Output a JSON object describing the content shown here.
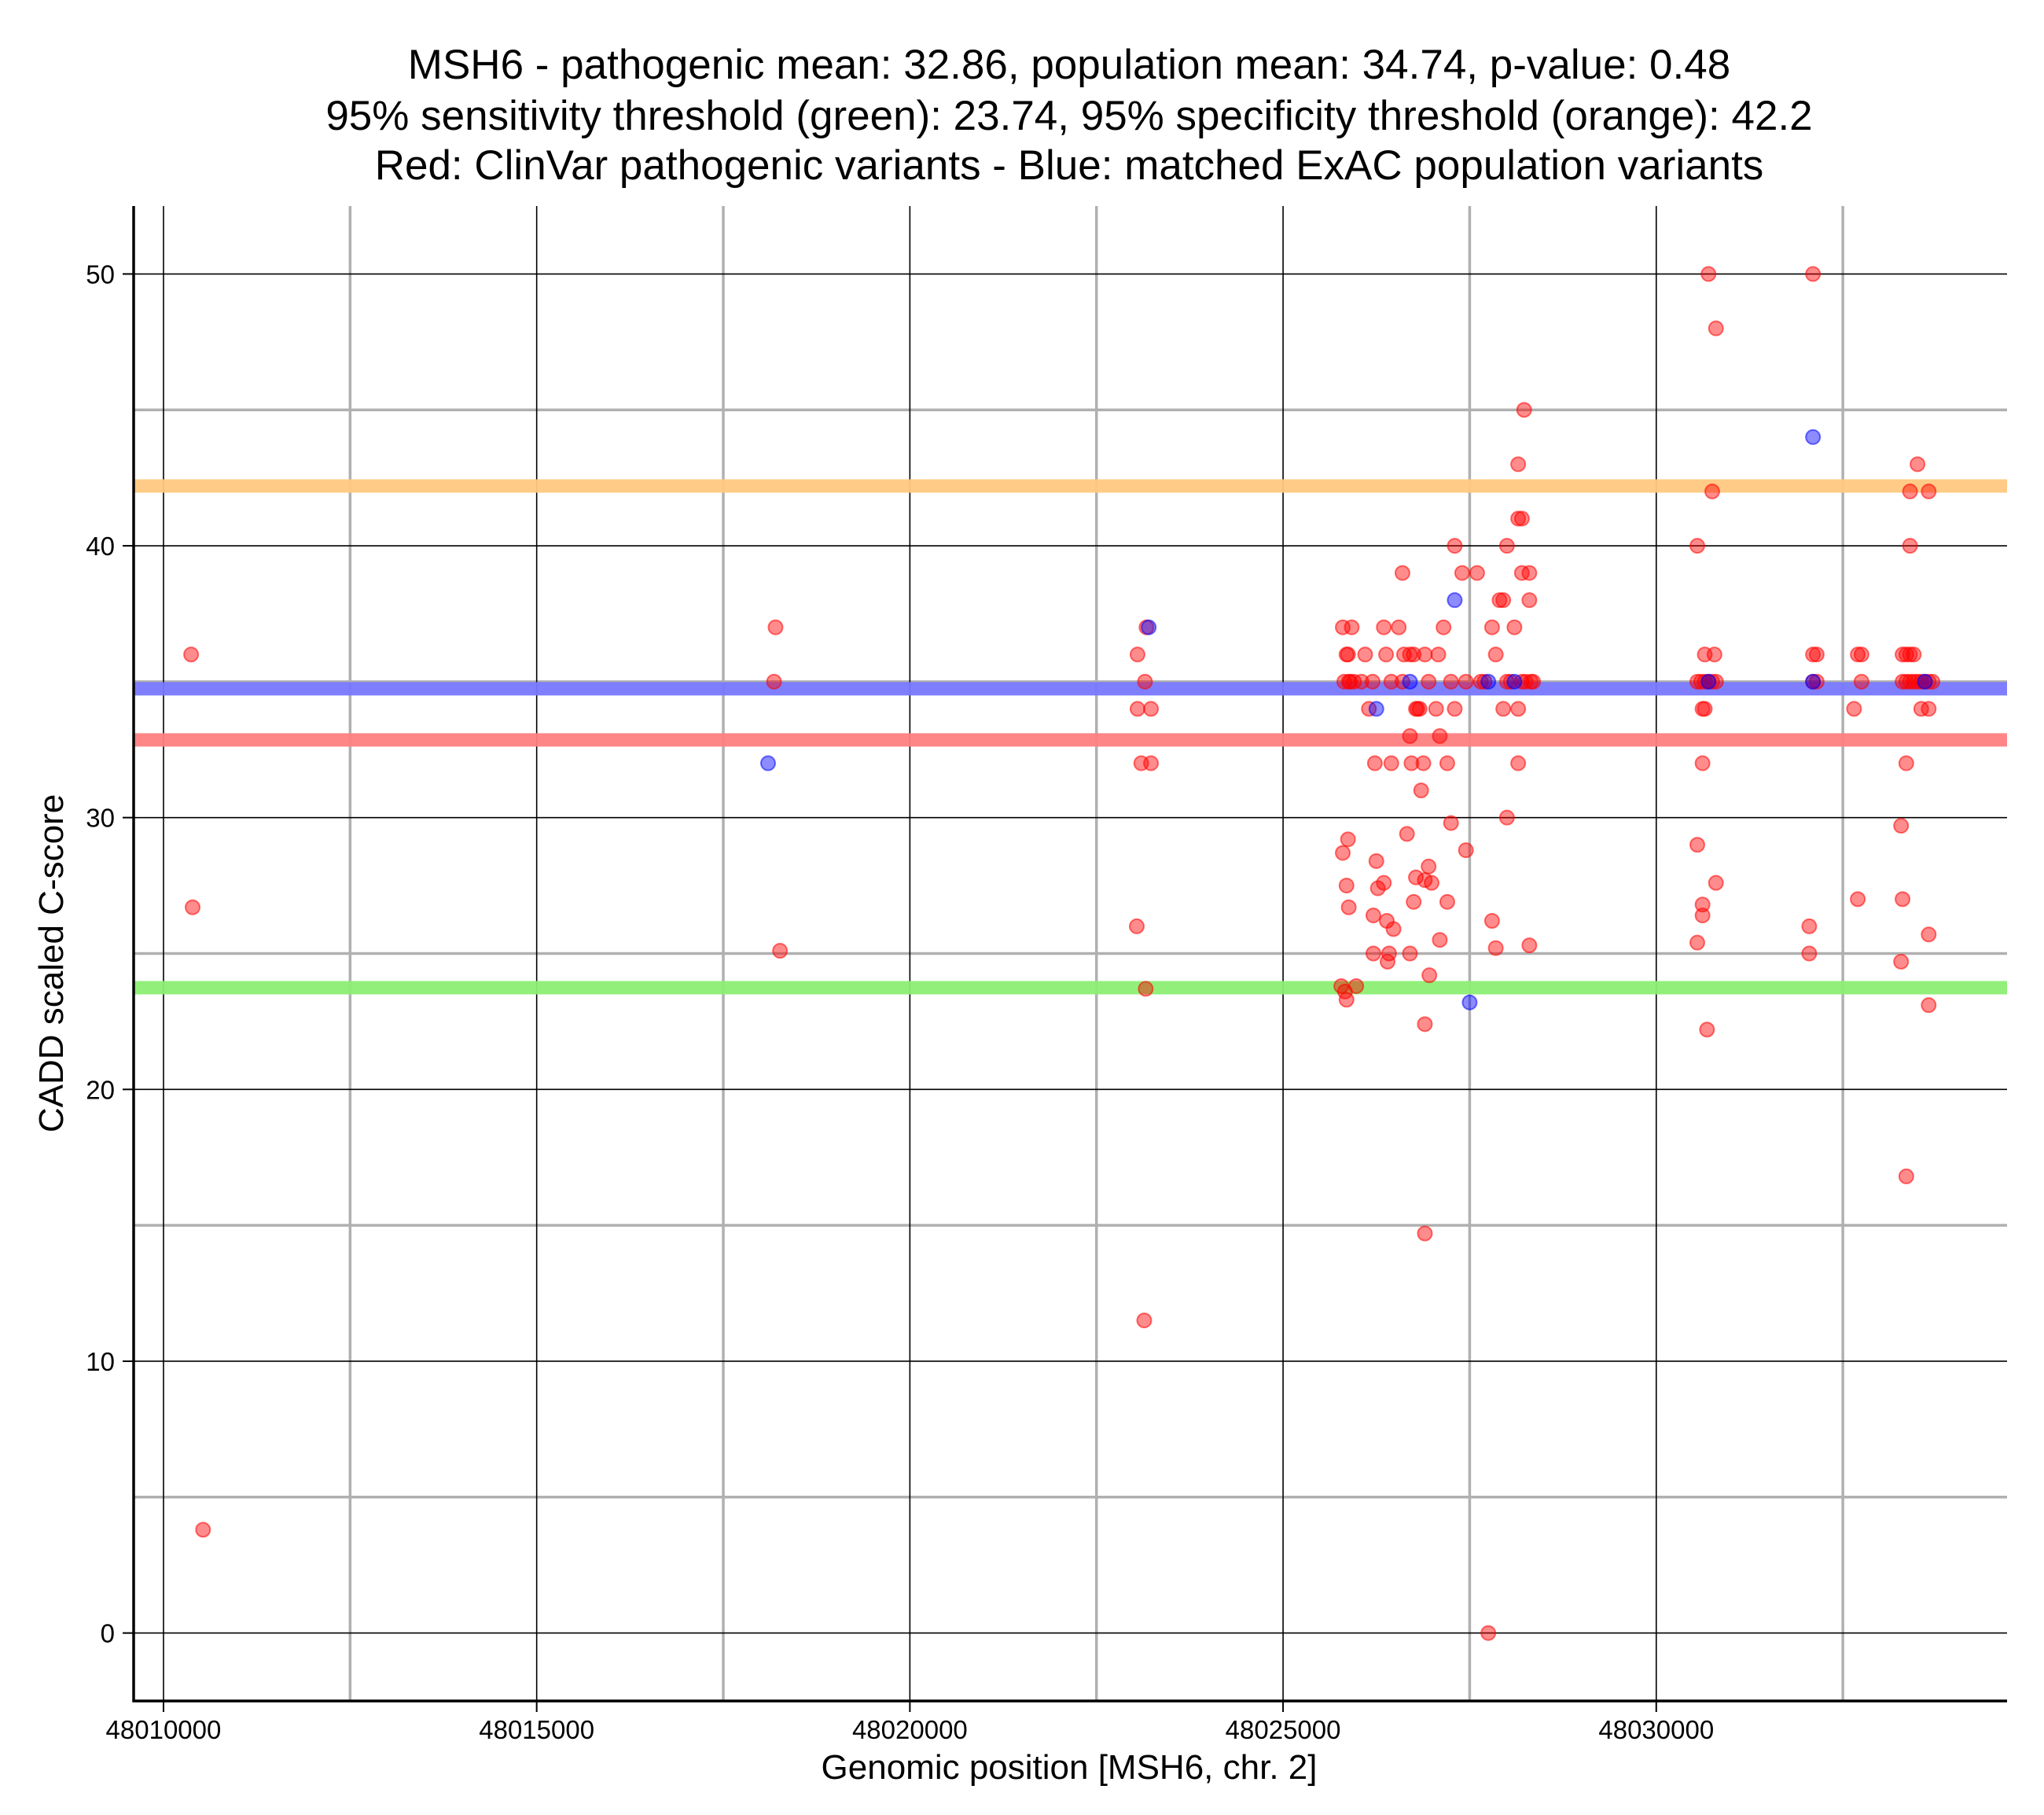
{
  "chart_data": {
    "type": "scatter",
    "title_lines": [
      "MSH6 - pathogenic mean: 32.86, population mean: 34.74, p-value: 0.48",
      "95% sensitivity threshold (green): 23.74, 95% specificity threshold (orange): 42.2",
      "Red: ClinVar pathogenic variants - Blue: matched ExAC population variants"
    ],
    "xlabel": "Genomic position [MSH6, chr. 2]",
    "ylabel": "CADD scaled C-score",
    "xlim": [
      48009600,
      48034700
    ],
    "ylim": [
      -2.5,
      52.5
    ],
    "x_ticks": [
      48010000,
      48015000,
      48020000,
      48025000,
      48030000
    ],
    "x_tick_labels": [
      "48010000",
      "48015000",
      "48020000",
      "48025000",
      "48030000"
    ],
    "y_ticks": [
      0,
      10,
      20,
      30,
      40,
      50
    ],
    "y_tick_labels": [
      "0",
      "10",
      "20",
      "30",
      "40",
      "50"
    ],
    "x_minor_grid": [
      48012500,
      48017500,
      48022500,
      48027500,
      48032500
    ],
    "y_minor_grid": [
      5,
      15,
      25,
      35,
      45
    ],
    "grid": true,
    "colors": {
      "pathogenic": "#ff0000",
      "population": "#0000ff",
      "pathogenic_mean_line": "#ff7f7f",
      "population_mean_line": "#7777ff",
      "sensitivity_line": "#8cee73",
      "specificity_line": "#ffc87f",
      "major_grid": "#000000",
      "minor_grid": "#b0b0b0"
    },
    "hlines": [
      {
        "name": "pathogenic mean",
        "value": 32.86,
        "color": "#ff7f7f"
      },
      {
        "name": "population mean",
        "value": 34.74,
        "color": "#7777ff"
      },
      {
        "name": "95% sensitivity threshold",
        "value": 23.74,
        "color": "#8cee73"
      },
      {
        "name": "95% specificity threshold",
        "value": 42.2,
        "color": "#ffc87f"
      }
    ],
    "series": [
      {
        "name": "ClinVar pathogenic variants",
        "color": "#ff0000",
        "points": [
          [
            48010370,
            36.0
          ],
          [
            48010390,
            26.7
          ],
          [
            48010530,
            3.8
          ],
          [
            48018200,
            37.0
          ],
          [
            48018180,
            35.0
          ],
          [
            48018260,
            25.1
          ],
          [
            48023050,
            36.0
          ],
          [
            48023050,
            34.0
          ],
          [
            48023150,
            35.0
          ],
          [
            48023170,
            37.0
          ],
          [
            48023230,
            34.0
          ],
          [
            48023100,
            32.0
          ],
          [
            48023230,
            32.0
          ],
          [
            48023040,
            26.0
          ],
          [
            48023160,
            23.7
          ],
          [
            48023140,
            11.5
          ],
          [
            48025800,
            37.0
          ],
          [
            48025850,
            36.0
          ],
          [
            48025870,
            36.0
          ],
          [
            48025920,
            37.0
          ],
          [
            48025820,
            35.0
          ],
          [
            48025880,
            35.0
          ],
          [
            48025900,
            35.0
          ],
          [
            48025950,
            35.0
          ],
          [
            48026050,
            35.0
          ],
          [
            48026100,
            36.0
          ],
          [
            48026150,
            34.0
          ],
          [
            48026200,
            35.0
          ],
          [
            48026230,
            32.0
          ],
          [
            48026350,
            37.0
          ],
          [
            48026380,
            36.0
          ],
          [
            48026450,
            35.0
          ],
          [
            48026450,
            32.0
          ],
          [
            48026550,
            37.0
          ],
          [
            48026600,
            39.0
          ],
          [
            48026600,
            35.0
          ],
          [
            48026620,
            36.0
          ],
          [
            48026700,
            36.0
          ],
          [
            48026700,
            33.0
          ],
          [
            48026720,
            32.0
          ],
          [
            48026750,
            36.0
          ],
          [
            48026780,
            34.0
          ],
          [
            48026800,
            34.0
          ],
          [
            48026830,
            34.0
          ],
          [
            48026850,
            31.0
          ],
          [
            48026880,
            32.0
          ],
          [
            48026900,
            36.0
          ],
          [
            48026950,
            35.0
          ],
          [
            48027050,
            34.0
          ],
          [
            48027080,
            36.0
          ],
          [
            48027100,
            33.0
          ],
          [
            48027150,
            37.0
          ],
          [
            48027200,
            32.0
          ],
          [
            48027250,
            35.0
          ],
          [
            48027300,
            40.0
          ],
          [
            48027300,
            34.0
          ],
          [
            48027400,
            39.0
          ],
          [
            48027450,
            35.0
          ],
          [
            48027600,
            39.0
          ],
          [
            48027650,
            35.0
          ],
          [
            48027700,
            35.0
          ],
          [
            48027800,
            37.0
          ],
          [
            48027850,
            36.0
          ],
          [
            48027900,
            38.0
          ],
          [
            48027950,
            38.0
          ],
          [
            48027950,
            34.0
          ],
          [
            48028000,
            40.0
          ],
          [
            48028000,
            35.0
          ],
          [
            48028050,
            35.0
          ],
          [
            48028100,
            37.0
          ],
          [
            48028150,
            41.0
          ],
          [
            48028150,
            34.0
          ],
          [
            48028150,
            43.0
          ],
          [
            48028200,
            41.0
          ],
          [
            48028200,
            39.0
          ],
          [
            48028200,
            35.0
          ],
          [
            48028230,
            45.0
          ],
          [
            48028250,
            35.0
          ],
          [
            48028300,
            39.0
          ],
          [
            48028300,
            38.0
          ],
          [
            48028320,
            35.0
          ],
          [
            48028350,
            35.0
          ],
          [
            48028150,
            32.0
          ],
          [
            48028000,
            30.0
          ],
          [
            48025800,
            28.7
          ],
          [
            48025850,
            27.5
          ],
          [
            48025870,
            29.2
          ],
          [
            48025880,
            26.7
          ],
          [
            48025780,
            23.8
          ],
          [
            48025830,
            23.6
          ],
          [
            48025850,
            23.3
          ],
          [
            48025980,
            23.8
          ],
          [
            48026210,
            26.4
          ],
          [
            48026250,
            28.4
          ],
          [
            48026270,
            27.4
          ],
          [
            48026350,
            27.6
          ],
          [
            48026390,
            26.2
          ],
          [
            48026420,
            25.0
          ],
          [
            48026400,
            24.7
          ],
          [
            48026480,
            25.9
          ],
          [
            48026210,
            25.0
          ],
          [
            48026660,
            29.4
          ],
          [
            48026700,
            25.0
          ],
          [
            48026750,
            26.9
          ],
          [
            48026780,
            27.8
          ],
          [
            48026900,
            27.7
          ],
          [
            48026950,
            28.2
          ],
          [
            48026990,
            27.6
          ],
          [
            48026960,
            24.2
          ],
          [
            48026900,
            22.4
          ],
          [
            48026900,
            14.7
          ],
          [
            48027100,
            25.5
          ],
          [
            48027200,
            26.9
          ],
          [
            48027250,
            29.8
          ],
          [
            48027450,
            28.8
          ],
          [
            48027800,
            26.2
          ],
          [
            48027850,
            25.2
          ],
          [
            48028300,
            25.3
          ],
          [
            48027750,
            0.0
          ],
          [
            48030550,
            40.0
          ],
          [
            48030550,
            35.0
          ],
          [
            48030600,
            35.0
          ],
          [
            48030650,
            35.0
          ],
          [
            48030700,
            35.0
          ],
          [
            48030750,
            35.0
          ],
          [
            48030800,
            35.0
          ],
          [
            48030650,
            36.0
          ],
          [
            48030780,
            36.0
          ],
          [
            48030620,
            34.0
          ],
          [
            48030650,
            34.0
          ],
          [
            48030620,
            32.0
          ],
          [
            48030750,
            42.0
          ],
          [
            48030700,
            50.0
          ],
          [
            48030800,
            48.0
          ],
          [
            48030550,
            29.0
          ],
          [
            48030620,
            26.8
          ],
          [
            48030620,
            26.4
          ],
          [
            48030550,
            25.4
          ],
          [
            48030800,
            27.6
          ],
          [
            48030680,
            22.2
          ],
          [
            48032100,
            50.0
          ],
          [
            48032100,
            36.0
          ],
          [
            48032150,
            36.0
          ],
          [
            48032100,
            35.0
          ],
          [
            48032150,
            35.0
          ],
          [
            48032050,
            26.0
          ],
          [
            48032050,
            25.0
          ],
          [
            48032700,
            36.0
          ],
          [
            48032750,
            36.0
          ],
          [
            48032750,
            35.0
          ],
          [
            48032650,
            34.0
          ],
          [
            48032700,
            27.0
          ],
          [
            48033300,
            36.0
          ],
          [
            48033350,
            36.0
          ],
          [
            48033400,
            36.0
          ],
          [
            48033450,
            36.0
          ],
          [
            48033300,
            35.0
          ],
          [
            48033350,
            35.0
          ],
          [
            48033400,
            35.0
          ],
          [
            48033450,
            35.0
          ],
          [
            48033500,
            35.0
          ],
          [
            48033550,
            35.0
          ],
          [
            48033600,
            35.0
          ],
          [
            48033650,
            35.0
          ],
          [
            48033700,
            35.0
          ],
          [
            48033550,
            34.0
          ],
          [
            48033650,
            34.0
          ],
          [
            48033400,
            42.0
          ],
          [
            48033500,
            43.0
          ],
          [
            48033650,
            42.0
          ],
          [
            48033400,
            40.0
          ],
          [
            48033350,
            32.0
          ],
          [
            48033280,
            29.7
          ],
          [
            48033300,
            27.0
          ],
          [
            48033650,
            25.7
          ],
          [
            48033280,
            24.7
          ],
          [
            48033650,
            23.1
          ],
          [
            48033350,
            16.8
          ]
        ]
      },
      {
        "name": "matched ExAC population variants",
        "color": "#0000ff",
        "points": [
          [
            48018100,
            32.0
          ],
          [
            48023200,
            37.0
          ],
          [
            48026250,
            34.0
          ],
          [
            48027300,
            38.0
          ],
          [
            48027500,
            23.2
          ],
          [
            48026700,
            35.0
          ],
          [
            48027750,
            35.0
          ],
          [
            48028100,
            35.0
          ],
          [
            48030700,
            35.0
          ],
          [
            48032100,
            44.0
          ],
          [
            48032100,
            35.0
          ],
          [
            48033600,
            35.0
          ]
        ]
      }
    ]
  }
}
